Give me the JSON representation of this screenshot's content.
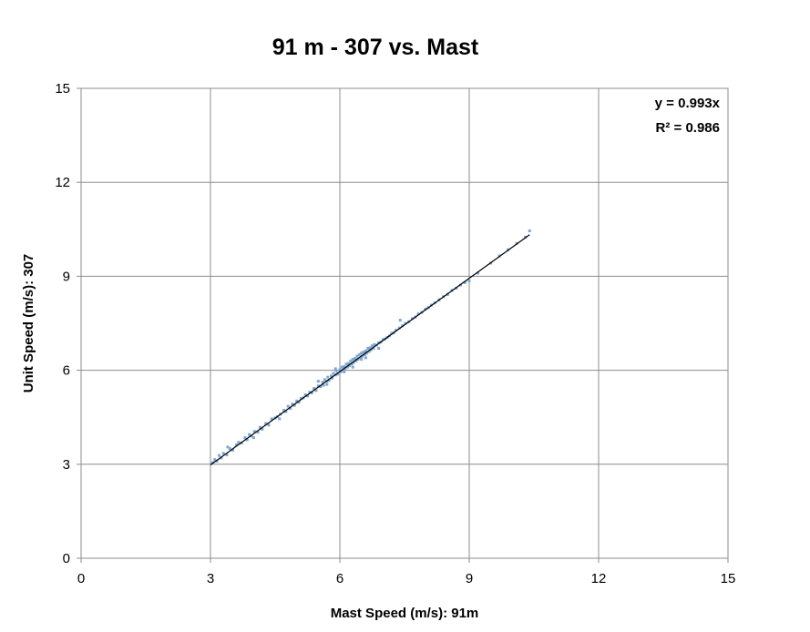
{
  "chart_data": {
    "type": "scatter",
    "title": "91 m - 307 vs. Mast",
    "xlabel": "Mast Speed (m/s): 91m",
    "ylabel": "Unit Speed (m/s): 307",
    "xlim": [
      0,
      15
    ],
    "ylim": [
      0,
      15
    ],
    "xticks": [
      "0",
      "3",
      "6",
      "9",
      "12",
      "15"
    ],
    "yticks": [
      "0",
      "3",
      "6",
      "9",
      "12",
      "15"
    ],
    "grid": true,
    "legend": "none",
    "trendline": {
      "slope": 0.993,
      "intercept": 0,
      "x_range": [
        3.0,
        10.4
      ],
      "equation_label": "y = 0.993x",
      "r2_label": "R² = 0.986",
      "color": "#000000"
    },
    "marker_color": "#7fa7d3",
    "series": [
      {
        "x": [
          3.05,
          3.1,
          3.15,
          3.2,
          3.25,
          3.3,
          3.38,
          3.45,
          3.52,
          3.6,
          3.65,
          3.72,
          3.8,
          3.85,
          3.9,
          3.95,
          4.02,
          4.1,
          4.15,
          4.2,
          4.28,
          4.35,
          4.42,
          4.5,
          4.55,
          4.62,
          4.7,
          4.75,
          4.8,
          4.85,
          4.9,
          4.95,
          5.0,
          5.05,
          5.1,
          5.15,
          5.2,
          5.25,
          5.3,
          5.35,
          5.4,
          5.45,
          5.5,
          5.55,
          5.6,
          5.62,
          5.65,
          5.7,
          5.72,
          5.75,
          5.8,
          5.82,
          5.85,
          5.9,
          5.92,
          5.95,
          6.0,
          6.02,
          6.05,
          6.08,
          6.1,
          6.12,
          6.15,
          6.18,
          6.2,
          6.22,
          6.25,
          6.28,
          6.3,
          6.32,
          6.35,
          6.38,
          6.4,
          6.42,
          6.45,
          6.48,
          6.5,
          6.52,
          6.55,
          6.58,
          6.6,
          6.62,
          6.65,
          6.68,
          6.7,
          6.72,
          6.75,
          6.78,
          6.8,
          6.85,
          6.9,
          6.95,
          7.0,
          7.05,
          7.1,
          7.15,
          7.2,
          7.25,
          7.3,
          7.38,
          7.45,
          7.52,
          7.6,
          7.68,
          7.75,
          7.82,
          7.9,
          7.98,
          8.05,
          8.12,
          8.2,
          8.3,
          8.4,
          8.5,
          8.6,
          8.7,
          8.8,
          8.9,
          9.0,
          9.2,
          9.5,
          9.7,
          9.9,
          10.1,
          10.3,
          10.4,
          3.4,
          4.0,
          5.5,
          5.9,
          6.3,
          6.6,
          6.9,
          7.4,
          4.6,
          5.7,
          6.1,
          6.5
        ],
        "y": [
          3.05,
          3.15,
          3.1,
          3.28,
          3.2,
          3.35,
          3.3,
          3.5,
          3.45,
          3.62,
          3.7,
          3.68,
          3.85,
          3.78,
          3.95,
          3.9,
          4.05,
          4.02,
          4.18,
          4.12,
          4.3,
          4.25,
          4.45,
          4.48,
          4.52,
          4.6,
          4.72,
          4.68,
          4.85,
          4.78,
          4.92,
          4.88,
          5.02,
          4.98,
          5.1,
          5.12,
          5.22,
          5.18,
          5.3,
          5.28,
          5.42,
          5.35,
          5.5,
          5.48,
          5.62,
          5.52,
          5.7,
          5.65,
          5.78,
          5.68,
          5.82,
          5.75,
          5.9,
          5.85,
          5.98,
          5.88,
          6.02,
          5.95,
          6.1,
          6.0,
          6.12,
          6.05,
          6.2,
          6.1,
          6.22,
          6.15,
          6.3,
          6.2,
          6.35,
          6.25,
          6.38,
          6.3,
          6.45,
          6.35,
          6.5,
          6.4,
          6.55,
          6.45,
          6.58,
          6.5,
          6.62,
          6.55,
          6.7,
          6.6,
          6.72,
          6.65,
          6.78,
          6.7,
          6.82,
          6.8,
          6.88,
          6.9,
          6.98,
          7.0,
          7.05,
          7.1,
          7.18,
          7.2,
          7.28,
          7.35,
          7.42,
          7.5,
          7.55,
          7.65,
          7.7,
          7.8,
          7.85,
          7.95,
          8.0,
          8.08,
          8.15,
          8.25,
          8.35,
          8.42,
          8.55,
          8.62,
          8.72,
          8.8,
          8.85,
          9.1,
          9.42,
          9.65,
          9.85,
          10.05,
          10.25,
          10.45,
          3.55,
          3.85,
          5.65,
          6.05,
          6.1,
          6.4,
          6.7,
          7.6,
          4.45,
          5.55,
          5.95,
          6.35
        ]
      }
    ]
  }
}
